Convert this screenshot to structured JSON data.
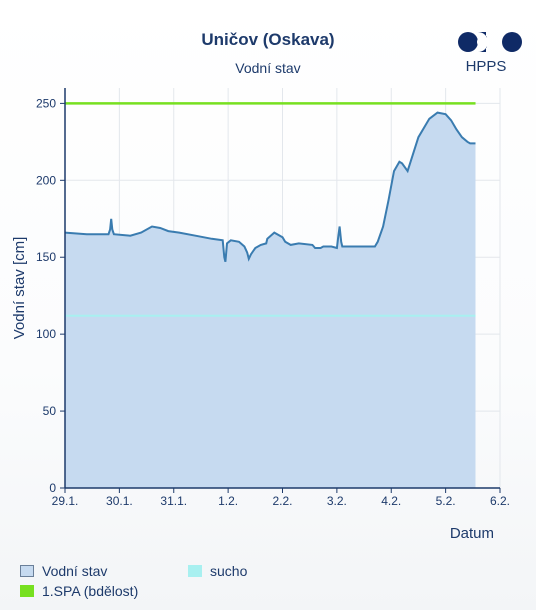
{
  "header": {
    "title": "Uničov (Oskava)",
    "subtitle": "Vodní stav",
    "logo_text": "HPPS"
  },
  "colors": {
    "area_fill": "#c6daf0",
    "area_line": "#3a7cb0",
    "spa_line": "#77e020",
    "sucho_line": "#a8f0f0",
    "grid": "#e3e7ec",
    "axis": "#1d3a6b"
  },
  "chart_data": {
    "type": "area",
    "title": "Uničov (Oskava)",
    "subtitle": "Vodní stav",
    "xlabel": "Datum",
    "ylabel": "Vodní stav [cm]",
    "ylim": [
      0,
      260
    ],
    "xlim": [
      0,
      8
    ],
    "y_ticks": [
      0,
      50,
      100,
      150,
      200,
      250
    ],
    "x_ticks": [
      {
        "x": 0,
        "label": "29.1."
      },
      {
        "x": 1,
        "label": "30.1."
      },
      {
        "x": 2,
        "label": "31.1."
      },
      {
        "x": 3,
        "label": "1.2."
      },
      {
        "x": 4,
        "label": "2.2."
      },
      {
        "x": 5,
        "label": "3.2."
      },
      {
        "x": 6,
        "label": "4.2."
      },
      {
        "x": 7,
        "label": "5.2."
      },
      {
        "x": 8,
        "label": "6.2."
      }
    ],
    "grid": true,
    "legend_position": "bottom",
    "series": [
      {
        "name": "Vodní stav",
        "x": [
          0,
          0.4,
          0.8,
          0.83,
          0.85,
          0.87,
          0.9,
          1.2,
          1.4,
          1.6,
          1.75,
          1.9,
          2.1,
          2.4,
          2.7,
          2.9,
          2.93,
          2.95,
          2.98,
          3.05,
          3.2,
          3.3,
          3.35,
          3.38,
          3.42,
          3.5,
          3.6,
          3.7,
          3.72,
          3.85,
          4.0,
          4.05,
          4.15,
          4.3,
          4.55,
          4.6,
          4.7,
          4.75,
          4.9,
          5.0,
          5.02,
          5.05,
          5.08,
          5.1,
          5.3,
          5.6,
          5.7,
          5.75,
          5.85,
          5.95,
          6.05,
          6.15,
          6.2,
          6.3,
          6.5,
          6.7,
          6.85,
          7.0,
          7.1,
          7.2,
          7.3,
          7.4,
          7.45,
          7.55
        ],
        "values": [
          166,
          165,
          165,
          168,
          175,
          168,
          165,
          164,
          166,
          170,
          169,
          167,
          166,
          164,
          162,
          161,
          150,
          147,
          159,
          161,
          160,
          157,
          153,
          149,
          152,
          156,
          158,
          159,
          162,
          166,
          163,
          160,
          158,
          159,
          158,
          156,
          156,
          157,
          157,
          156,
          162,
          170,
          160,
          157,
          157,
          157,
          157,
          160,
          170,
          187,
          206,
          212,
          211,
          206,
          228,
          240,
          244,
          243,
          239,
          233,
          228,
          225,
          224,
          224
        ]
      }
    ],
    "reference_lines": [
      {
        "name": "1.SPA (bdělost)",
        "y": 250
      },
      {
        "name": "sucho",
        "y": 112
      }
    ]
  },
  "legend": {
    "items": [
      {
        "label": "Vodní stav"
      },
      {
        "label": "sucho"
      },
      {
        "label": "1.SPA (bdělost)"
      }
    ]
  }
}
